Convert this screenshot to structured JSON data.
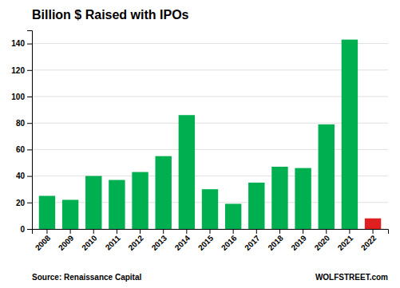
{
  "chart_data": {
    "type": "bar",
    "title": "Billion $ Raised with IPOs",
    "categories": [
      "2008",
      "2009",
      "2010",
      "2011",
      "2012",
      "2013",
      "2014",
      "2015",
      "2016",
      "2017",
      "2018",
      "2019",
      "2020",
      "2021",
      "2022"
    ],
    "values": [
      25,
      22,
      40,
      37,
      43,
      55,
      86,
      30,
      19,
      35,
      47,
      46,
      79,
      143,
      8
    ],
    "colors": [
      "#00b050",
      "#00b050",
      "#00b050",
      "#00b050",
      "#00b050",
      "#00b050",
      "#00b050",
      "#00b050",
      "#00b050",
      "#00b050",
      "#00b050",
      "#00b050",
      "#00b050",
      "#00b050",
      "#e02020"
    ],
    "ylim": [
      0,
      150
    ],
    "yticks": [
      0,
      20,
      40,
      60,
      80,
      100,
      120,
      140
    ],
    "grid": true,
    "annotations": [
      "Source: Renaissance Capital",
      "WOLFSTREET.com"
    ]
  }
}
